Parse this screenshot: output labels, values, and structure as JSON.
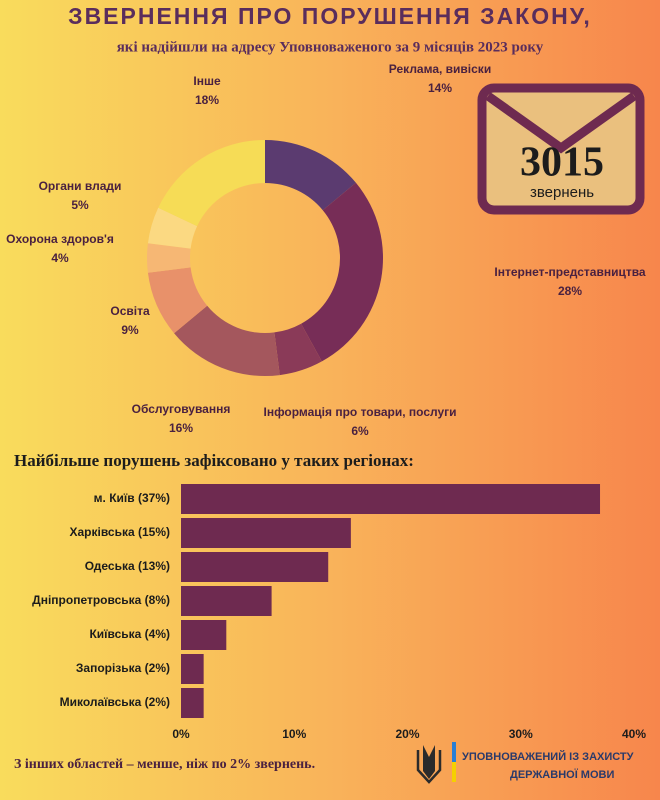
{
  "header": {
    "title": "ЗВЕРНЕННЯ ПРО ПОРУШЕННЯ ЗАКОНУ,",
    "subtitle": "які надійшли на адресу Уповноваженого за 9 місяців 2023 року"
  },
  "badge": {
    "number": "3015",
    "label": "звернень"
  },
  "chart_data": [
    {
      "type": "donut",
      "categories": [
        "Реклама, вивіски",
        "Інтернет-представництва",
        "Інформація про товари, послуги",
        "Обслуговування",
        "Освіта",
        "Охорона здоров'я",
        "Органи влади",
        "Інше"
      ],
      "values": [
        14,
        28,
        6,
        16,
        9,
        4,
        5,
        18
      ],
      "value_labels": [
        "14%",
        "28%",
        "6%",
        "16%",
        "9%",
        "4%",
        "5%",
        "18%"
      ],
      "colors": [
        "#5b3b70",
        "#772d57",
        "#8a3a58",
        "#a4575d",
        "#e8916a",
        "#f6b774",
        "#fbd982",
        "#f6dc56"
      ]
    },
    {
      "type": "bar",
      "orientation": "horizontal",
      "title": "Найбільше порушень зафіксовано у таких регіонах:",
      "categories": [
        "м. Київ (37%)",
        "Харківська (15%)",
        "Одеська (13%)",
        "Дніпропетровська (8%)",
        "Київська (4%)",
        "Запорізька (2%)",
        "Миколаївська (2%)"
      ],
      "values": [
        37,
        15,
        13,
        8,
        4,
        2,
        2
      ],
      "color": "#6e2a50",
      "xlim": [
        0,
        40
      ],
      "xticks": [
        {
          "value": 0,
          "label": "0%"
        },
        {
          "value": 10,
          "label": "10%"
        },
        {
          "value": 20,
          "label": "20%"
        },
        {
          "value": 30,
          "label": "30%"
        },
        {
          "value": 40,
          "label": "40%"
        }
      ],
      "grid": false
    }
  ],
  "footer": {
    "note": "З інших областей – менше, ніж по 2% звернень.",
    "org": [
      "УПОВНОВАЖЕНИЙ ІЗ ЗАХИСТУ",
      "ДЕРЖАВНОЇ МОВИ"
    ]
  }
}
